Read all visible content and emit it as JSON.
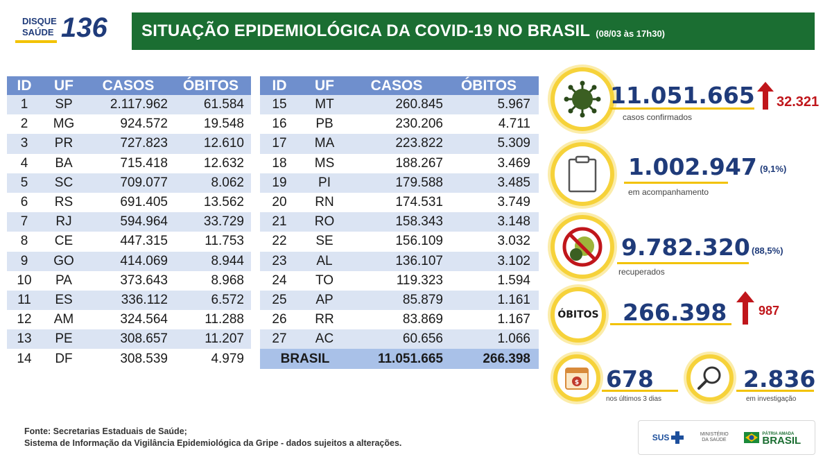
{
  "logo": {
    "line1": "DISQUE",
    "line2": "SAÚDE",
    "number": "136"
  },
  "header": {
    "title": "SITUAÇÃO EPIDEMIOLÓGICA DA COVID-19 NO BRASIL",
    "date": "(08/03 às 17h30)"
  },
  "table_headers": {
    "id": "ID",
    "uf": "UF",
    "casos": "CASOS",
    "obitos": "ÓBITOS"
  },
  "table_left": [
    {
      "id": "1",
      "uf": "SP",
      "casos": "2.117.962",
      "obitos": "61.584"
    },
    {
      "id": "2",
      "uf": "MG",
      "casos": "924.572",
      "obitos": "19.548"
    },
    {
      "id": "3",
      "uf": "PR",
      "casos": "727.823",
      "obitos": "12.610"
    },
    {
      "id": "4",
      "uf": "BA",
      "casos": "715.418",
      "obitos": "12.632"
    },
    {
      "id": "5",
      "uf": "SC",
      "casos": "709.077",
      "obitos": "8.062"
    },
    {
      "id": "6",
      "uf": "RS",
      "casos": "691.405",
      "obitos": "13.562"
    },
    {
      "id": "7",
      "uf": "RJ",
      "casos": "594.964",
      "obitos": "33.729"
    },
    {
      "id": "8",
      "uf": "CE",
      "casos": "447.315",
      "obitos": "11.753"
    },
    {
      "id": "9",
      "uf": "GO",
      "casos": "414.069",
      "obitos": "8.944"
    },
    {
      "id": "10",
      "uf": "PA",
      "casos": "373.643",
      "obitos": "8.968"
    },
    {
      "id": "11",
      "uf": "ES",
      "casos": "336.112",
      "obitos": "6.572"
    },
    {
      "id": "12",
      "uf": "AM",
      "casos": "324.564",
      "obitos": "11.288"
    },
    {
      "id": "13",
      "uf": "PE",
      "casos": "308.657",
      "obitos": "11.207"
    },
    {
      "id": "14",
      "uf": "DF",
      "casos": "308.539",
      "obitos": "4.979"
    }
  ],
  "table_right": [
    {
      "id": "15",
      "uf": "MT",
      "casos": "260.845",
      "obitos": "5.967"
    },
    {
      "id": "16",
      "uf": "PB",
      "casos": "230.206",
      "obitos": "4.711"
    },
    {
      "id": "17",
      "uf": "MA",
      "casos": "223.822",
      "obitos": "5.309"
    },
    {
      "id": "18",
      "uf": "MS",
      "casos": "188.267",
      "obitos": "3.469"
    },
    {
      "id": "19",
      "uf": "PI",
      "casos": "179.588",
      "obitos": "3.485"
    },
    {
      "id": "20",
      "uf": "RN",
      "casos": "174.531",
      "obitos": "3.749"
    },
    {
      "id": "21",
      "uf": "RO",
      "casos": "158.343",
      "obitos": "3.148"
    },
    {
      "id": "22",
      "uf": "SE",
      "casos": "156.109",
      "obitos": "3.032"
    },
    {
      "id": "23",
      "uf": "AL",
      "casos": "136.107",
      "obitos": "3.102"
    },
    {
      "id": "24",
      "uf": "TO",
      "casos": "119.323",
      "obitos": "1.594"
    },
    {
      "id": "25",
      "uf": "AP",
      "casos": "85.879",
      "obitos": "1.161"
    },
    {
      "id": "26",
      "uf": "RR",
      "casos": "83.869",
      "obitos": "1.167"
    },
    {
      "id": "27",
      "uf": "AC",
      "casos": "60.656",
      "obitos": "1.066"
    }
  ],
  "total": {
    "label": "BRASIL",
    "casos": "11.051.665",
    "obitos": "266.398"
  },
  "stats": {
    "confirmados": {
      "value": "11.051.665",
      "label": "casos confirmados",
      "increase": "32.321",
      "icon": "virus-icon"
    },
    "acompanhamento": {
      "value": "1.002.947",
      "pct": "(9,1%)",
      "label": "em acompanhamento",
      "icon": "clipboard-icon"
    },
    "recuperados": {
      "value": "9.782.320",
      "pct": "(88,5%)",
      "label": "recuperados",
      "icon": "no-virus-icon"
    },
    "obitos": {
      "badge": "ÓBITOS",
      "value": "266.398",
      "increase": "987"
    },
    "ultimos": {
      "value": "678",
      "label": "nos últimos 3 dias",
      "icon": "calendar-icon"
    },
    "investigacao": {
      "value": "2.836",
      "label": "em investigação",
      "icon": "magnifier-icon"
    }
  },
  "footer": {
    "line1": "Fonte: Secretarias Estaduais de Saúde;",
    "line2": "Sistema de Informação da Vigilância Epidemiológica da Gripe - dados sujeitos a alterações."
  },
  "gov_logos": {
    "sus": "SUS",
    "ministerio": "MINISTÉRIO DA SAÚDE",
    "patria": "PÁTRIA AMADA",
    "brasil": "BRASIL"
  },
  "colors": {
    "header_green": "#1b6e32",
    "table_header_blue": "#6f8fcd",
    "row_blue": "#dbe4f3",
    "accent_yellow": "#f6d23a",
    "number_navy": "#1f3b7a",
    "arrow_red": "#c0161b"
  }
}
